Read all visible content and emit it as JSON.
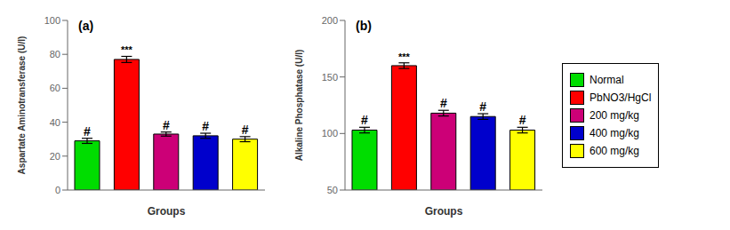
{
  "chart_data": [
    {
      "type": "bar",
      "title": "(a)",
      "ylabel": "Aspartate Aminotransferase (U/l)",
      "xlabel": "Groups",
      "categories": [
        "Normal",
        "PbNO3/HgCl",
        "200 mg/kg",
        "400 mg/kg",
        "600 mg/kg"
      ],
      "values": [
        29,
        77,
        33,
        32,
        30
      ],
      "errors": [
        1.5,
        1.8,
        1.2,
        1.5,
        1.5
      ],
      "colors": [
        "#00dd00",
        "#ff0000",
        "#cc0077",
        "#0000cc",
        "#ffff00"
      ],
      "annotations": [
        "#",
        "***",
        "#",
        "#",
        "#"
      ],
      "ylim": [
        0,
        100
      ],
      "yticks": [
        0,
        20,
        40,
        60,
        80,
        100
      ],
      "tick_labels": "y"
    },
    {
      "type": "bar",
      "title": "(b)",
      "ylabel": "Alkaline Phosphatase (U/l)",
      "xlabel": "Groups",
      "categories": [
        "Normal",
        "PbNO3/HgCl",
        "200 mg/kg",
        "400 mg/kg",
        "600 mg/kg"
      ],
      "values": [
        103,
        160,
        118,
        115,
        103
      ],
      "errors": [
        2.5,
        2.5,
        2.5,
        2.5,
        2.5
      ],
      "colors": [
        "#00dd00",
        "#ff0000",
        "#cc0077",
        "#0000cc",
        "#ffff00"
      ],
      "annotations": [
        "#",
        "***",
        "#",
        "#",
        "#"
      ],
      "ylim": [
        50,
        200
      ],
      "yticks": [
        50,
        100,
        150,
        200
      ],
      "tick_labels": "y",
      "legend": "right"
    }
  ]
}
